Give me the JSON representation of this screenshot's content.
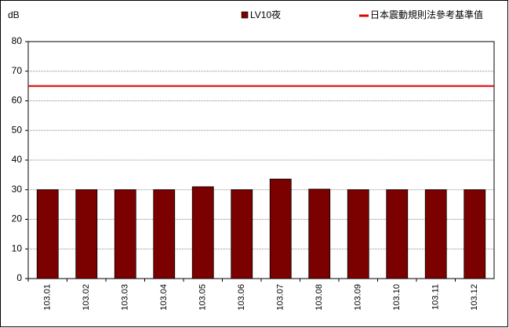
{
  "chart_data": {
    "type": "bar",
    "y_label": "dB",
    "categories": [
      "103.01",
      "103.02",
      "103.03",
      "103.04",
      "103.05",
      "103.06",
      "103.07",
      "103.08",
      "103.09",
      "103.10",
      "103.11",
      "103.12"
    ],
    "series": [
      {
        "name": "LV10夜",
        "color": "#7b0000",
        "values": [
          30,
          30,
          30,
          30,
          31,
          30,
          33.6,
          30.2,
          30,
          30,
          30,
          30
        ]
      }
    ],
    "reference_lines": [
      {
        "name": "日本震動規則法參考基準值",
        "value": 65,
        "color": "#e00000"
      }
    ],
    "ylim": [
      0,
      80
    ],
    "yticks": [
      0,
      10,
      20,
      30,
      40,
      50,
      60,
      70,
      80
    ],
    "grid": true
  }
}
